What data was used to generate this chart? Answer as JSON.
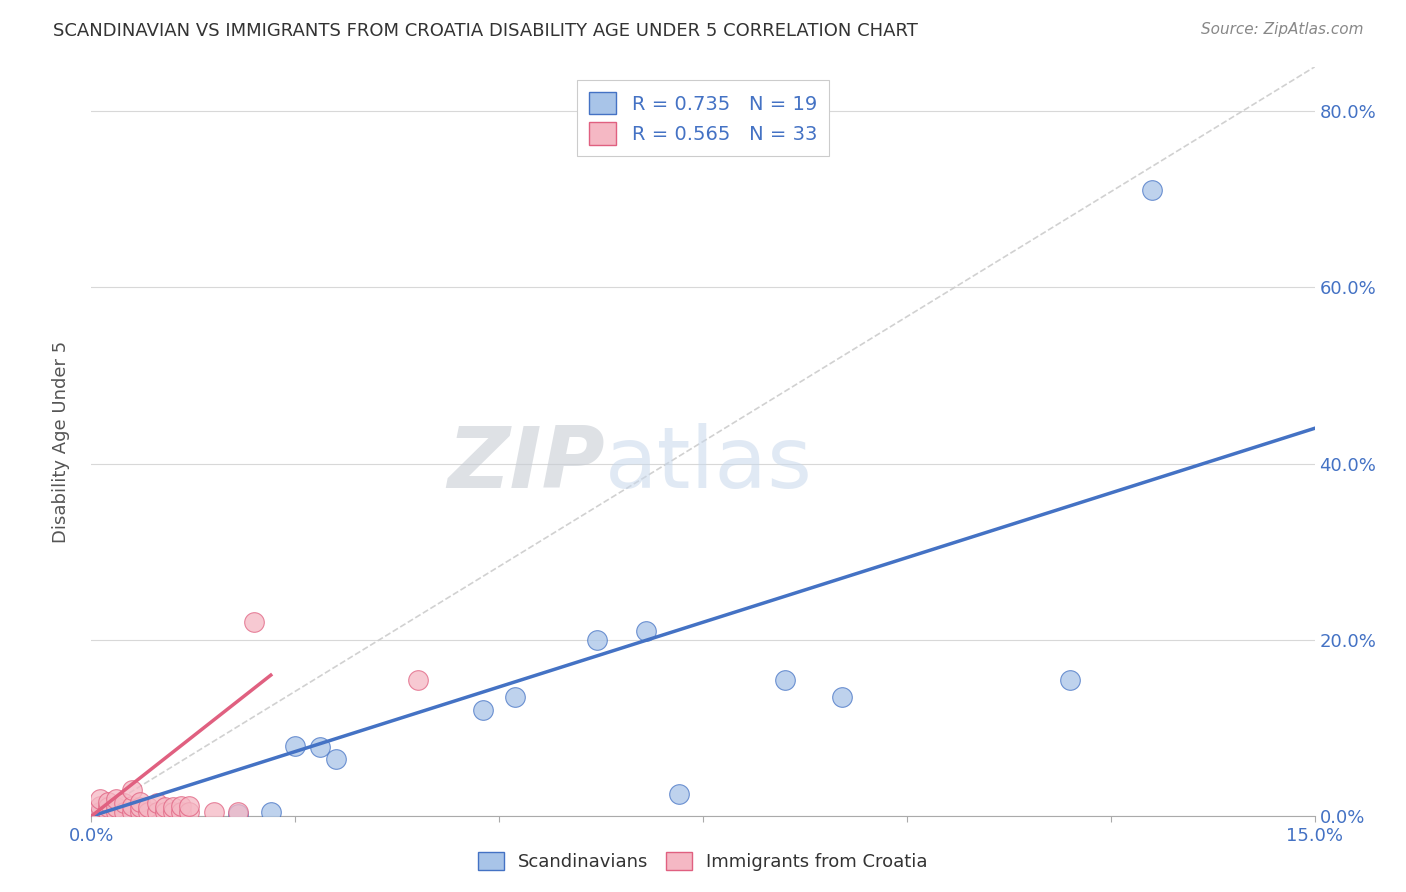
{
  "title": "SCANDINAVIAN VS IMMIGRANTS FROM CROATIA DISABILITY AGE UNDER 5 CORRELATION CHART",
  "source": "Source: ZipAtlas.com",
  "ylabel": "Disability Age Under 5",
  "xlim": [
    0,
    0.15
  ],
  "ylim": [
    0,
    0.85
  ],
  "blue_R": 0.735,
  "blue_N": 19,
  "pink_R": 0.565,
  "pink_N": 33,
  "blue_color": "#a8c4e8",
  "pink_color": "#f5b8c4",
  "blue_line_color": "#4472c4",
  "pink_line_color": "#e06080",
  "diagonal_color": "#cccccc",
  "background_color": "#ffffff",
  "blue_scatter_x": [
    0.001,
    0.002,
    0.003,
    0.005,
    0.005,
    0.018,
    0.022,
    0.025,
    0.028,
    0.03,
    0.048,
    0.052,
    0.062,
    0.068,
    0.072,
    0.085,
    0.092,
    0.12,
    0.13
  ],
  "blue_scatter_y": [
    0.005,
    0.003,
    0.003,
    0.003,
    0.006,
    0.003,
    0.005,
    0.08,
    0.078,
    0.065,
    0.12,
    0.135,
    0.2,
    0.21,
    0.025,
    0.155,
    0.135,
    0.155,
    0.71
  ],
  "pink_scatter_x": [
    0.001,
    0.001,
    0.001,
    0.002,
    0.002,
    0.002,
    0.003,
    0.003,
    0.003,
    0.004,
    0.004,
    0.005,
    0.005,
    0.005,
    0.006,
    0.006,
    0.006,
    0.007,
    0.007,
    0.008,
    0.008,
    0.009,
    0.009,
    0.01,
    0.01,
    0.011,
    0.011,
    0.012,
    0.012,
    0.015,
    0.018,
    0.02,
    0.04
  ],
  "pink_scatter_y": [
    0.005,
    0.012,
    0.02,
    0.005,
    0.01,
    0.016,
    0.005,
    0.01,
    0.02,
    0.005,
    0.015,
    0.005,
    0.012,
    0.03,
    0.005,
    0.01,
    0.016,
    0.005,
    0.01,
    0.005,
    0.015,
    0.005,
    0.01,
    0.005,
    0.01,
    0.005,
    0.012,
    0.005,
    0.012,
    0.005,
    0.005,
    0.22,
    0.155
  ],
  "blue_line_x": [
    0.0,
    0.15
  ],
  "blue_line_y": [
    0.0,
    0.44
  ],
  "pink_line_x": [
    0.0,
    0.022
  ],
  "pink_line_y": [
    0.0,
    0.16
  ],
  "diag_line_x": [
    0.0,
    0.15
  ],
  "diag_line_y": [
    0.0,
    0.85
  ],
  "watermark_zip": "ZIP",
  "watermark_atlas": "atlas",
  "xtick_vals": [
    0.0,
    0.025,
    0.05,
    0.075,
    0.1,
    0.125,
    0.15
  ],
  "xtick_labels": [
    "0.0%",
    "",
    "",
    "",
    "",
    "",
    "15.0%"
  ],
  "ytick_vals": [
    0.0,
    0.2,
    0.4,
    0.6,
    0.8
  ],
  "ytick_labels": [
    "0.0%",
    "20.0%",
    "40.0%",
    "60.0%",
    "80.0%"
  ],
  "legend_labels": [
    "Scandinavians",
    "Immigrants from Croatia"
  ],
  "title_fontsize": 13,
  "source_fontsize": 11,
  "tick_fontsize": 13,
  "ylabel_fontsize": 13
}
